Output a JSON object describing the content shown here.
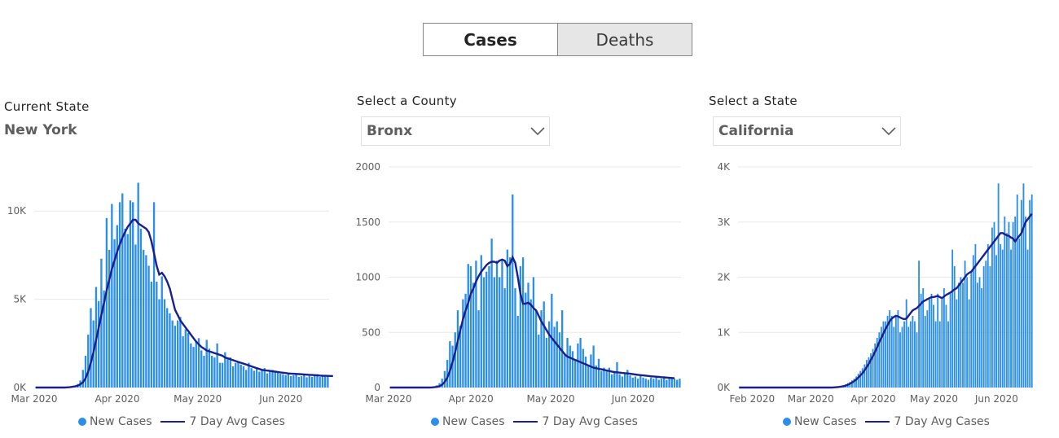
{
  "toggle": {
    "cases_label": "Cases",
    "deaths_label": "Deaths"
  },
  "panels": [
    {
      "label": "Current State",
      "value": "New York"
    },
    {
      "label": "Select a County",
      "value": "Bronx"
    },
    {
      "label": "Select a State",
      "value": "California"
    }
  ],
  "legend": {
    "new_cases": "New Cases",
    "avg": "7 Day Avg Cases"
  },
  "colors": {
    "bar": "#2b8ee8",
    "avg_line": "#1a1f8f"
  },
  "chart_data": [
    {
      "type": "bar",
      "title": "New York",
      "x_start": "2020-03-01",
      "x_end": "2020-06-19",
      "x_tick_labels": [
        "Mar 2020",
        "Apr 2020",
        "May 2020",
        "Jun 2020"
      ],
      "y_ticks": [
        0,
        5000,
        10000
      ],
      "y_tick_labels": [
        "0K",
        "5K",
        "10K"
      ],
      "ylim": [
        0,
        12500
      ],
      "grid": true,
      "legend_position": "bottom",
      "series": [
        {
          "name": "New Cases",
          "type": "bar",
          "values": [
            0,
            0,
            0,
            0,
            0,
            0,
            0,
            0,
            0,
            0,
            0,
            0,
            0,
            30,
            60,
            100,
            200,
            400,
            1000,
            1800,
            3000,
            4500,
            3800,
            5700,
            4900,
            7300,
            5500,
            9600,
            7800,
            10400,
            8400,
            9200,
            10500,
            11000,
            9000,
            8700,
            10600,
            10500,
            8100,
            11600,
            9000,
            7800,
            7500,
            6900,
            6000,
            10500,
            6000,
            5000,
            6300,
            5000,
            4500,
            4200,
            3800,
            3500,
            3800,
            4000,
            2900,
            3300,
            3100,
            2500,
            2300,
            2600,
            2800,
            2100,
            1800,
            2700,
            2200,
            1800,
            1700,
            2500,
            1400,
            1400,
            2000,
            1600,
            1700,
            1200,
            1400,
            1500,
            1300,
            1200,
            1000,
            1400,
            1100,
            950,
            1050,
            900,
            1000,
            1100,
            800,
            900,
            1000,
            850,
            900,
            780,
            750,
            700,
            800,
            650,
            700,
            750,
            600,
            640,
            700,
            580,
            660,
            600,
            700,
            750,
            600,
            640,
            700,
            620
          ]
        },
        {
          "name": "7 Day Avg Cases",
          "type": "line",
          "values": [
            0,
            0,
            0,
            0,
            0,
            0,
            0,
            0,
            0,
            0,
            0,
            0,
            10,
            20,
            40,
            70,
            100,
            180,
            300,
            520,
            900,
            1400,
            2000,
            2700,
            3400,
            4100,
            4800,
            5500,
            6100,
            6700,
            7200,
            7700,
            8100,
            8500,
            8800,
            9100,
            9300,
            9500,
            9500,
            9300,
            9200,
            9100,
            9000,
            8800,
            8300,
            7600,
            6900,
            6400,
            6500,
            6300,
            6000,
            5600,
            5000,
            4400,
            4100,
            3800,
            3600,
            3400,
            3200,
            3000,
            2800,
            2600,
            2450,
            2300,
            2200,
            2100,
            2050,
            2000,
            1950,
            1900,
            1850,
            1800,
            1700,
            1650,
            1600,
            1550,
            1500,
            1450,
            1400,
            1350,
            1300,
            1250,
            1200,
            1150,
            1100,
            1050,
            1000,
            980,
            960,
            940,
            920,
            900,
            880,
            860,
            840,
            820,
            800,
            790,
            780,
            770,
            760,
            750,
            740,
            730,
            720,
            710,
            700,
            690,
            680,
            670,
            665,
            660,
            655,
            650
          ]
        }
      ]
    },
    {
      "type": "bar",
      "title": "Bronx",
      "x_start": "2020-03-01",
      "x_end": "2020-06-19",
      "x_tick_labels": [
        "Mar 2020",
        "Apr 2020",
        "May 2020",
        "Jun 2020"
      ],
      "y_ticks": [
        0,
        500,
        1000,
        1500,
        2000
      ],
      "y_tick_labels": [
        "0",
        "500",
        "1000",
        "1500",
        "2000"
      ],
      "ylim": [
        0,
        2000
      ],
      "grid": true,
      "legend_position": "bottom",
      "series": [
        {
          "name": "New Cases",
          "type": "bar",
          "values": [
            0,
            0,
            0,
            0,
            0,
            0,
            0,
            0,
            0,
            0,
            0,
            0,
            0,
            0,
            0,
            0,
            5,
            10,
            20,
            40,
            80,
            150,
            250,
            420,
            380,
            500,
            700,
            560,
            800,
            850,
            1120,
            1100,
            950,
            1150,
            700,
            1200,
            1000,
            1050,
            1100,
            1350,
            1000,
            1150,
            1000,
            1150,
            900,
            1250,
            1180,
            1750,
            900,
            650,
            1100,
            1180,
            860,
            950,
            800,
            1000,
            700,
            480,
            700,
            780,
            450,
            600,
            850,
            550,
            600,
            500,
            700,
            300,
            450,
            380,
            330,
            250,
            400,
            450,
            350,
            280,
            200,
            300,
            380,
            200,
            260,
            150,
            180,
            150,
            180,
            120,
            140,
            230,
            120,
            100,
            130,
            160,
            110,
            90,
            100,
            80,
            110,
            90,
            80,
            70,
            90,
            80,
            100,
            70,
            80,
            90,
            70,
            80,
            90,
            80,
            70,
            80
          ]
        },
        {
          "name": "7 Day Avg Cases",
          "type": "line",
          "values": [
            0,
            0,
            0,
            0,
            0,
            0,
            0,
            0,
            0,
            0,
            0,
            0,
            0,
            0,
            0,
            0,
            1,
            3,
            6,
            12,
            25,
            50,
            90,
            150,
            230,
            320,
            420,
            520,
            620,
            700,
            770,
            850,
            900,
            960,
            1010,
            1050,
            1080,
            1110,
            1130,
            1140,
            1140,
            1130,
            1150,
            1160,
            1150,
            1100,
            1120,
            1180,
            1130,
            1000,
            850,
            760,
            760,
            770,
            750,
            720,
            700,
            650,
            600,
            560,
            520,
            480,
            450,
            420,
            390,
            360,
            330,
            300,
            280,
            270,
            260,
            250,
            240,
            230,
            220,
            210,
            200,
            190,
            180,
            175,
            170,
            165,
            160,
            155,
            150,
            145,
            140,
            138,
            135,
            132,
            130,
            128,
            125,
            122,
            118,
            115,
            112,
            110,
            108,
            105,
            102,
            100,
            98,
            96,
            94,
            92,
            90,
            88,
            86,
            84
          ]
        }
      ]
    },
    {
      "type": "bar",
      "title": "California",
      "x_start": "2020-01-25",
      "x_end": "2020-06-19",
      "x_tick_labels": [
        "Feb 2020",
        "Mar 2020",
        "Apr 2020",
        "May 2020",
        "Jun 2020"
      ],
      "y_ticks": [
        0,
        1000,
        2000,
        3000,
        4000
      ],
      "y_tick_labels": [
        "0K",
        "1K",
        "2K",
        "3K",
        "4K"
      ],
      "ylim": [
        0,
        4000
      ],
      "grid": true,
      "legend_position": "bottom",
      "series": [
        {
          "name": "New Cases",
          "type": "bar",
          "values": [
            0,
            0,
            0,
            0,
            0,
            0,
            0,
            0,
            0,
            0,
            0,
            0,
            0,
            0,
            0,
            0,
            0,
            0,
            0,
            0,
            0,
            0,
            0,
            0,
            0,
            0,
            0,
            0,
            0,
            0,
            0,
            0,
            0,
            0,
            0,
            0,
            0,
            0,
            0,
            0,
            0,
            0,
            0,
            0,
            0,
            5,
            10,
            15,
            20,
            30,
            40,
            60,
            80,
            100,
            130,
            160,
            200,
            250,
            300,
            350,
            420,
            500,
            550,
            620,
            700,
            800,
            900,
            1000,
            1100,
            1200,
            1200,
            1300,
            1400,
            1300,
            1100,
            1300,
            1400,
            1000,
            1100,
            1200,
            1600,
            1100,
            1200,
            1300,
            1200,
            1000,
            2300,
            1700,
            1800,
            1300,
            1400,
            1600,
            1700,
            1500,
            1200,
            1700,
            1200,
            1600,
            1800,
            1500,
            1200,
            1700,
            2500,
            2200,
            1600,
            1900,
            2000,
            1900,
            2300,
            2000,
            1600,
            2100,
            2400,
            2600,
            1900,
            2000,
            1800,
            2200,
            2300,
            2600,
            2200,
            2900,
            3000,
            2400,
            3700,
            2600,
            2500,
            3100,
            2800,
            3000,
            2500,
            3000,
            3100,
            3500,
            2700,
            3400,
            3700,
            3100,
            2500,
            3400,
            3500
          ]
        },
        {
          "name": "7 Day Avg Cases",
          "type": "line",
          "values": [
            0,
            0,
            0,
            0,
            0,
            0,
            0,
            0,
            0,
            0,
            0,
            0,
            0,
            0,
            0,
            0,
            0,
            0,
            0,
            0,
            0,
            0,
            0,
            0,
            0,
            0,
            0,
            0,
            0,
            0,
            0,
            0,
            0,
            0,
            0,
            0,
            0,
            0,
            0,
            0,
            0,
            0,
            0,
            0,
            0,
            2,
            5,
            8,
            12,
            18,
            25,
            35,
            50,
            70,
            90,
            115,
            145,
            180,
            220,
            260,
            310,
            370,
            430,
            500,
            570,
            650,
            730,
            820,
            900,
            980,
            1060,
            1130,
            1200,
            1250,
            1280,
            1300,
            1290,
            1270,
            1250,
            1240,
            1250,
            1300,
            1350,
            1400,
            1420,
            1440,
            1480,
            1520,
            1560,
            1580,
            1600,
            1620,
            1640,
            1640,
            1650,
            1660,
            1640,
            1620,
            1650,
            1680,
            1700,
            1720,
            1750,
            1780,
            1800,
            1850,
            1900,
            1950,
            2000,
            2050,
            2080,
            2100,
            2150,
            2200,
            2250,
            2300,
            2350,
            2400,
            2450,
            2500,
            2550,
            2600,
            2650,
            2700,
            2750,
            2800,
            2800,
            2780,
            2760,
            2750,
            2720,
            2700,
            2650,
            2700,
            2750,
            2800,
            2900,
            3000,
            3050,
            3100,
            3150
          ]
        }
      ]
    }
  ]
}
